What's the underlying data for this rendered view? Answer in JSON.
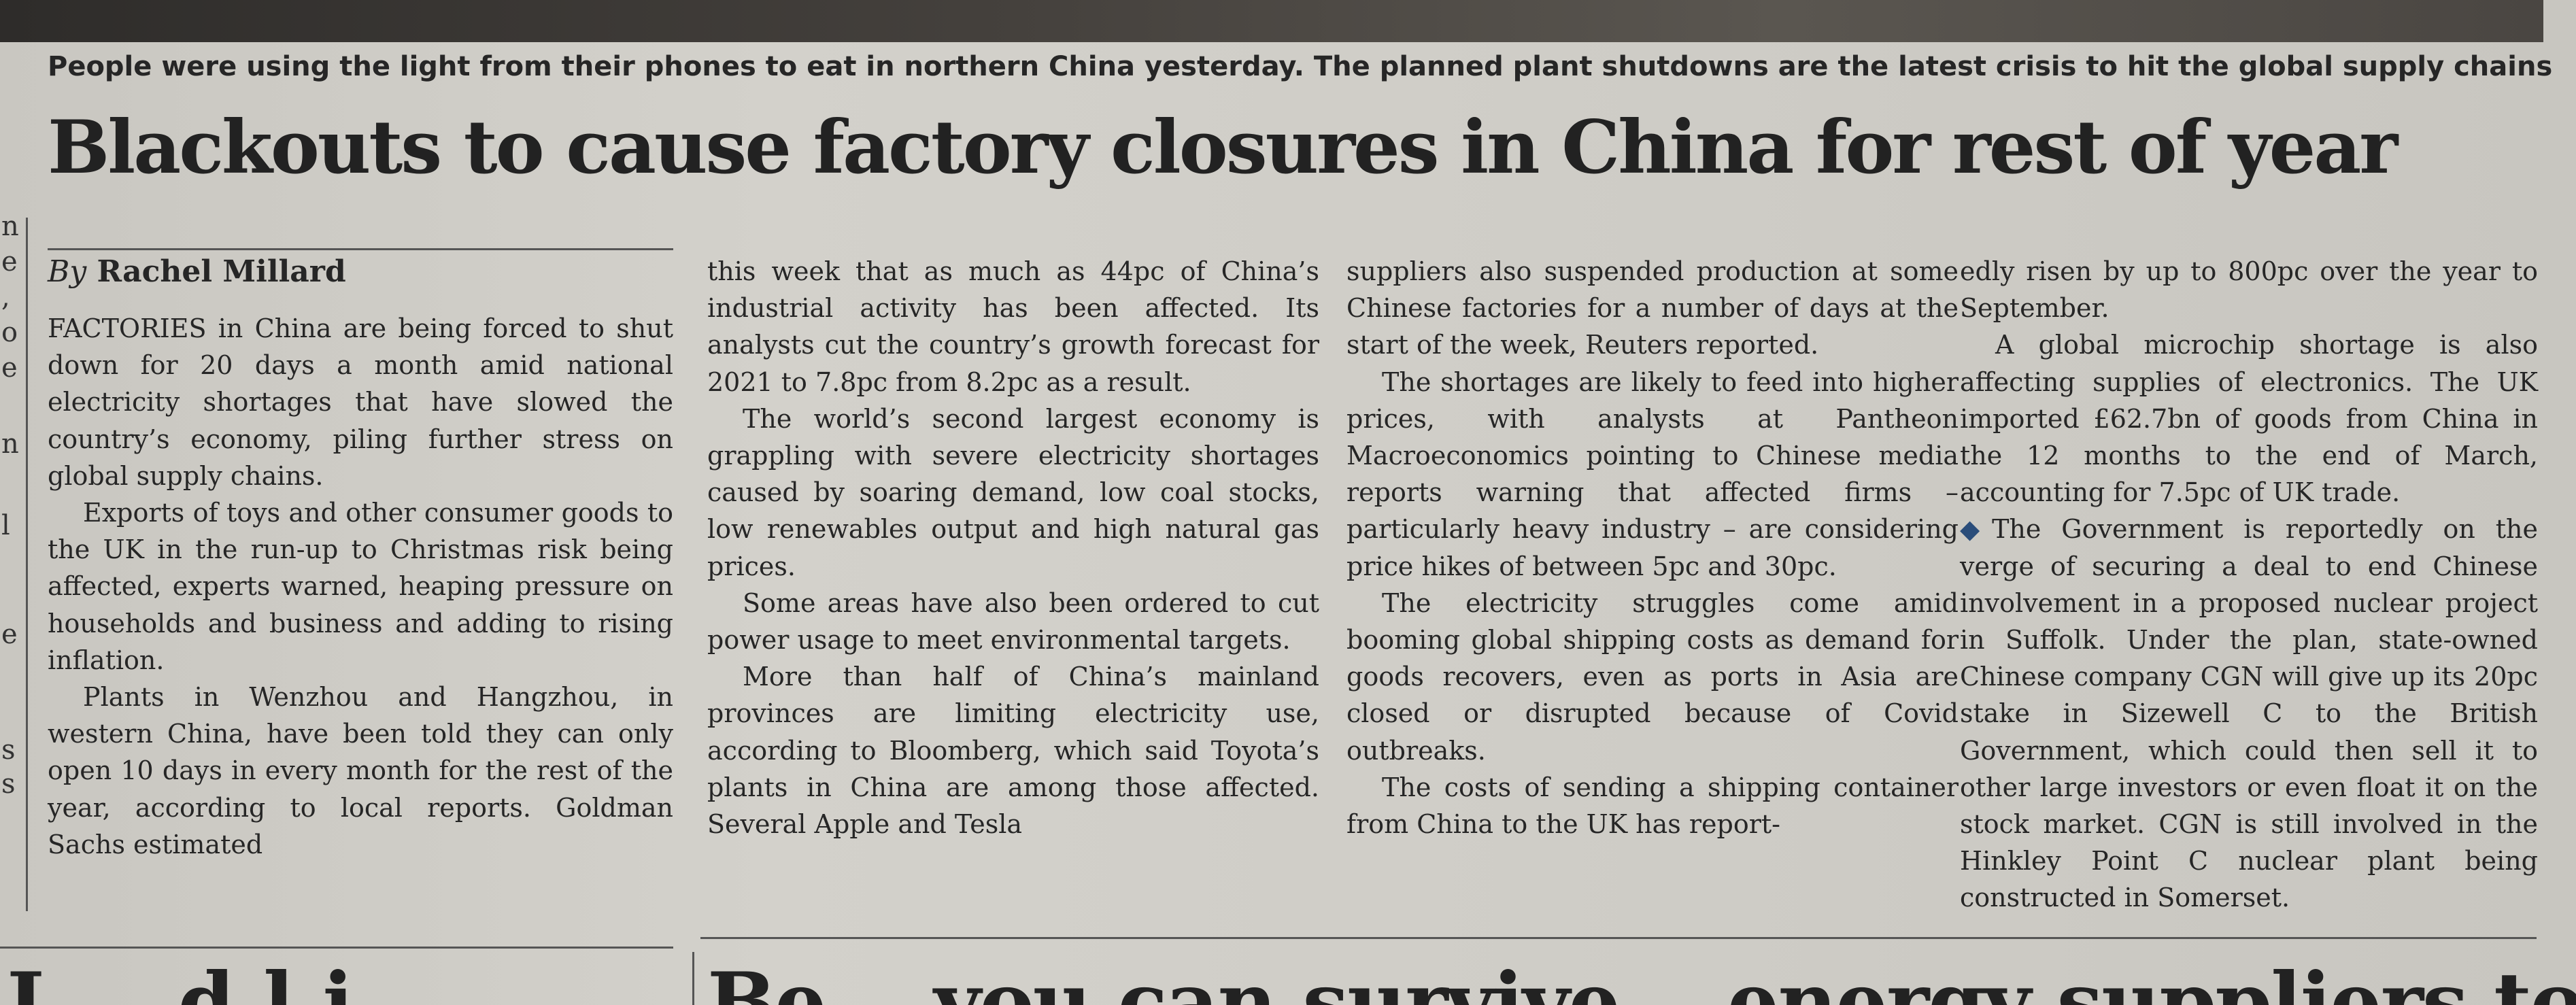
{
  "caption": "People were using the light from their phones to eat in northern China yesterday. The planned plant shutdowns are the latest crisis to hit the global supply chains",
  "headline": "Blackouts to cause factory closures in China for rest of year",
  "byline": {
    "by": "By",
    "author": "Rachel Millard"
  },
  "margin_fragments": [
    "n",
    "e",
    ",",
    "o",
    "e",
    "n",
    "l",
    "e",
    "s",
    "s"
  ],
  "columns": [
    {
      "paragraphs": [
        {
          "text": "FACTORIES in China are being forced to shut down for 20 days a month amid national electricity shortages that have slowed the country’s economy, piling further stress on global supply chains.",
          "indent": false
        },
        {
          "text": "Exports of toys and other consumer goods to the UK in the run-up to Christmas risk being affected, experts warned, heaping pressure on households and business and adding to rising inflation.",
          "indent": true
        },
        {
          "text": "Plants in Wenzhou and Hangzhou, in western China, have been told they can only open 10 days in every month for the rest of the year, according to local reports. Goldman Sachs estimated",
          "indent": true
        }
      ]
    },
    {
      "paragraphs": [
        {
          "text": "this week that as much as 44pc of China’s industrial activity has been affected. Its analysts cut the country’s growth forecast for 2021 to 7.8pc from 8.2pc as a result.",
          "indent": false
        },
        {
          "text": "The world’s second largest economy is grappling with severe electricity shortages caused by soaring demand, low coal stocks, low renewables output and high natural gas prices.",
          "indent": true
        },
        {
          "text": "Some areas have also been ordered to cut power usage to meet environmental targets.",
          "indent": true
        },
        {
          "text": "More than half of China’s mainland provinces are limiting electricity use, according to Bloomberg, which said Toyota’s plants in China are among those affected. Several Apple and Tesla",
          "indent": true
        }
      ]
    },
    {
      "paragraphs": [
        {
          "text": "suppliers also suspended production at some Chinese factories for a number of days at the start of the week, Reuters reported.",
          "indent": false
        },
        {
          "text": "The shortages are likely to feed into higher prices, with analysts at Pantheon Macroeconomics pointing to Chinese media reports warning that affected firms – particularly heavy industry – are considering price hikes of between 5pc and 30pc.",
          "indent": true
        },
        {
          "text": "The electricity struggles come amid booming global shipping costs as demand for goods recovers, even as ports in Asia are closed or disrupted because of Covid outbreaks.",
          "indent": true
        },
        {
          "text": "The costs of sending a shipping container from China to the UK has report-",
          "indent": true
        }
      ]
    },
    {
      "paragraphs": [
        {
          "text": "edly risen by up to 800pc over the year to September.",
          "indent": false
        },
        {
          "text": "A global microchip shortage is also affecting supplies of electronics. The UK imported £62.7bn of goods from China in the 12 months to the end of March, accounting for 7.5pc of UK trade.",
          "indent": true
        },
        {
          "text": "The Government is reportedly on the verge of securing a deal to end Chinese involvement in a proposed nuclear project in Suffolk. Under the plan, state-owned Chinese company CGN will give up its 20pc stake in Sizewell C to the British Government, which could then sell it to other large investors or even float it on the stock market. CGN is still involved in the Hinkley Point C nuclear plant being constructed in Somerset.",
          "indent": false,
          "bullet": "◆"
        }
      ]
    }
  ],
  "next_story": {
    "left_fragment": "L   ...d.l.i.",
    "right_fragment": "Be... you can survive... energy suppliers told"
  }
}
